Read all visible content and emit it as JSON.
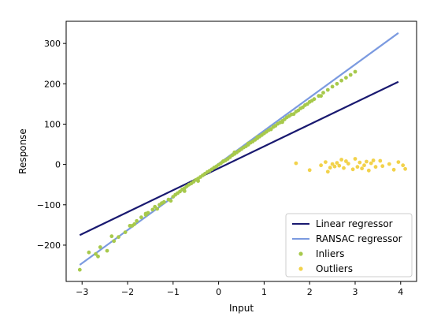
{
  "chart_data": {
    "type": "scatter",
    "title": "",
    "xlabel": "Input",
    "ylabel": "Response",
    "xlim": [
      -3.35,
      4.35
    ],
    "ylim": [
      -290,
      355
    ],
    "xticks": [
      -3,
      -2,
      -1,
      0,
      1,
      2,
      3,
      4
    ],
    "yticks": [
      -200,
      -100,
      0,
      100,
      200,
      300
    ],
    "xtick_labels": [
      "−3",
      "−2",
      "−1",
      "0",
      "1",
      "2",
      "3",
      "4"
    ],
    "ytick_labels": [
      "−200",
      "−100",
      "0",
      "100",
      "200",
      "300"
    ],
    "grid": false,
    "legend_position": "lower-right",
    "lines": [
      {
        "name": "Linear regressor",
        "color": "#191970",
        "x": [
          -3.05,
          3.95
        ],
        "y": [
          -175,
          205
        ]
      },
      {
        "name": "RANSAC regressor",
        "color": "#7b9ae0",
        "x": [
          -3.05,
          3.95
        ],
        "y": [
          -249,
          326
        ]
      }
    ],
    "scatter": [
      {
        "name": "Inliers",
        "color": "#a7c94c",
        "x": [
          -3.05,
          -2.85,
          -2.7,
          -2.65,
          -2.45,
          -2.3,
          -2.2,
          -2.05,
          -1.95,
          -1.85,
          -1.8,
          -1.7,
          -1.6,
          -1.55,
          -1.45,
          -1.4,
          -1.3,
          -1.25,
          -1.2,
          -1.1,
          -1.0,
          -0.95,
          -0.9,
          -0.85,
          -0.8,
          -0.75,
          -0.7,
          -0.65,
          -0.6,
          -0.55,
          -0.5,
          -0.45,
          -0.4,
          -0.35,
          -0.3,
          -0.25,
          -0.2,
          -0.15,
          -0.1,
          -0.05,
          0.0,
          0.05,
          0.1,
          0.15,
          0.2,
          0.25,
          0.3,
          0.35,
          0.4,
          0.45,
          0.5,
          0.55,
          0.6,
          0.65,
          0.7,
          0.75,
          0.8,
          0.85,
          0.9,
          0.95,
          1.0,
          1.05,
          1.1,
          1.15,
          1.2,
          1.25,
          1.3,
          1.35,
          1.4,
          1.45,
          1.5,
          1.55,
          1.6,
          1.7,
          1.75,
          1.8,
          1.85,
          1.9,
          2.0,
          2.05,
          2.1,
          2.2,
          2.3,
          2.4,
          2.5,
          2.6,
          2.7,
          2.8,
          2.9,
          3.0,
          -2.6,
          -2.35,
          -1.9,
          -1.6,
          -1.35,
          -1.05,
          -0.75,
          -0.45,
          -0.2,
          0.1,
          0.35,
          0.65,
          0.85,
          1.15,
          1.4,
          1.65,
          1.95,
          2.25
        ],
        "y": [
          -261,
          -218,
          -222,
          -228,
          -214,
          -190,
          -180,
          -168,
          -152,
          -148,
          -140,
          -131,
          -122,
          -120,
          -112,
          -105,
          -100,
          -96,
          -93,
          -87,
          -80,
          -75,
          -71,
          -67,
          -62,
          -59,
          -54,
          -50,
          -47,
          -43,
          -38,
          -35,
          -31,
          -27,
          -23,
          -19,
          -16,
          -12,
          -8,
          -5,
          -1,
          3,
          7,
          10,
          14,
          18,
          23,
          26,
          30,
          34,
          38,
          42,
          45,
          49,
          54,
          57,
          61,
          65,
          69,
          73,
          77,
          81,
          85,
          88,
          93,
          96,
          101,
          104,
          108,
          112,
          117,
          120,
          124,
          131,
          134,
          139,
          142,
          147,
          155,
          158,
          162,
          170,
          178,
          185,
          193,
          200,
          208,
          215,
          222,
          230,
          -205,
          -178,
          -152,
          -125,
          -110,
          -90,
          -66,
          -41,
          -16,
          8,
          30,
          52,
          68,
          87,
          105,
          125,
          150,
          170
        ]
      },
      {
        "name": "Outliers",
        "color": "#f2d24b",
        "x": [
          1.7,
          2.0,
          2.25,
          2.35,
          2.45,
          2.5,
          2.55,
          2.6,
          2.65,
          2.75,
          2.8,
          2.85,
          2.95,
          3.0,
          3.05,
          3.1,
          3.15,
          3.2,
          3.25,
          3.3,
          3.35,
          3.45,
          3.55,
          3.6,
          3.75,
          3.85,
          3.95,
          4.05,
          4.1,
          2.4,
          2.7,
          3.4
        ],
        "y": [
          3,
          -14,
          -2,
          6,
          -8,
          1,
          -5,
          4,
          -3,
          -9,
          8,
          2,
          -12,
          14,
          -6,
          5,
          -10,
          -2,
          7,
          -15,
          3,
          -6,
          9,
          -4,
          1,
          -13,
          6,
          -2,
          -11,
          -18,
          12,
          10
        ]
      }
    ]
  }
}
